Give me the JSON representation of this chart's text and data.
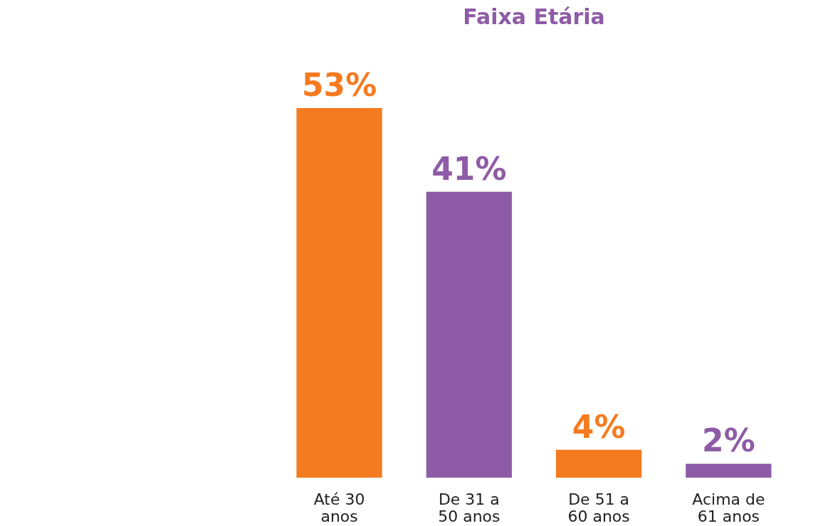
{
  "chart_data": {
    "type": "bar",
    "title": "Faixa Etária",
    "categories": [
      "Até 30\nanos",
      "De 31 a\n50 anos",
      "De 51 a\n60 anos",
      "Acima de\n61 anos"
    ],
    "values": [
      53,
      41,
      4,
      2
    ],
    "colors": [
      "#f47b20",
      "#8e5ba6",
      "#f47b20",
      "#8e5ba6"
    ],
    "value_labels": [
      "53%",
      "41%",
      "4%",
      "2%"
    ],
    "grid": false,
    "legend": false
  }
}
